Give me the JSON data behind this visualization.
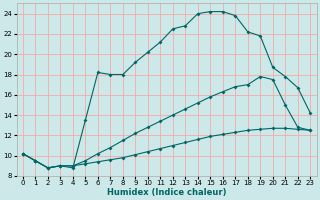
{
  "xlabel": "Humidex (Indice chaleur)",
  "background_color": "#cce8e8",
  "grid_color": "#f5aaaa",
  "line_color": "#006666",
  "xlim": [
    -0.5,
    23.5
  ],
  "ylim": [
    8,
    25
  ],
  "xticks": [
    0,
    1,
    2,
    3,
    4,
    5,
    6,
    7,
    8,
    9,
    10,
    11,
    12,
    13,
    14,
    15,
    16,
    17,
    18,
    19,
    20,
    21,
    22,
    23
  ],
  "yticks": [
    8,
    10,
    12,
    14,
    16,
    18,
    20,
    22,
    24
  ],
  "line1_x": [
    0,
    1,
    2,
    3,
    4,
    5,
    6,
    7,
    8,
    9,
    10,
    11,
    12,
    13,
    14,
    15,
    16,
    17,
    18,
    19,
    20,
    21,
    22,
    23
  ],
  "line1_y": [
    10.2,
    9.5,
    8.8,
    9.0,
    9.0,
    9.2,
    9.4,
    9.6,
    9.8,
    10.1,
    10.4,
    10.7,
    11.0,
    11.3,
    11.6,
    11.9,
    12.1,
    12.3,
    12.5,
    12.6,
    12.7,
    12.7,
    12.6,
    12.5
  ],
  "line2_x": [
    0,
    1,
    2,
    3,
    4,
    5,
    6,
    7,
    8,
    9,
    10,
    11,
    12,
    13,
    14,
    15,
    16,
    17,
    18,
    19,
    20,
    21,
    22,
    23
  ],
  "line2_y": [
    10.2,
    9.5,
    8.8,
    9.0,
    9.0,
    9.5,
    10.2,
    10.8,
    11.5,
    12.2,
    12.8,
    13.4,
    14.0,
    14.6,
    15.2,
    15.8,
    16.3,
    16.8,
    17.0,
    17.8,
    17.5,
    15.0,
    12.8,
    12.5
  ],
  "line3_x": [
    0,
    1,
    2,
    3,
    4,
    5,
    6,
    7,
    8,
    9,
    10,
    11,
    12,
    13,
    14,
    15,
    16,
    17,
    18,
    19,
    20,
    21,
    22,
    23
  ],
  "line3_y": [
    10.2,
    9.5,
    8.8,
    9.0,
    8.8,
    13.5,
    18.2,
    18.0,
    18.0,
    19.2,
    20.2,
    21.2,
    22.5,
    22.8,
    24.0,
    24.2,
    24.2,
    23.8,
    22.2,
    21.8,
    18.7,
    17.8,
    16.7,
    14.2
  ]
}
